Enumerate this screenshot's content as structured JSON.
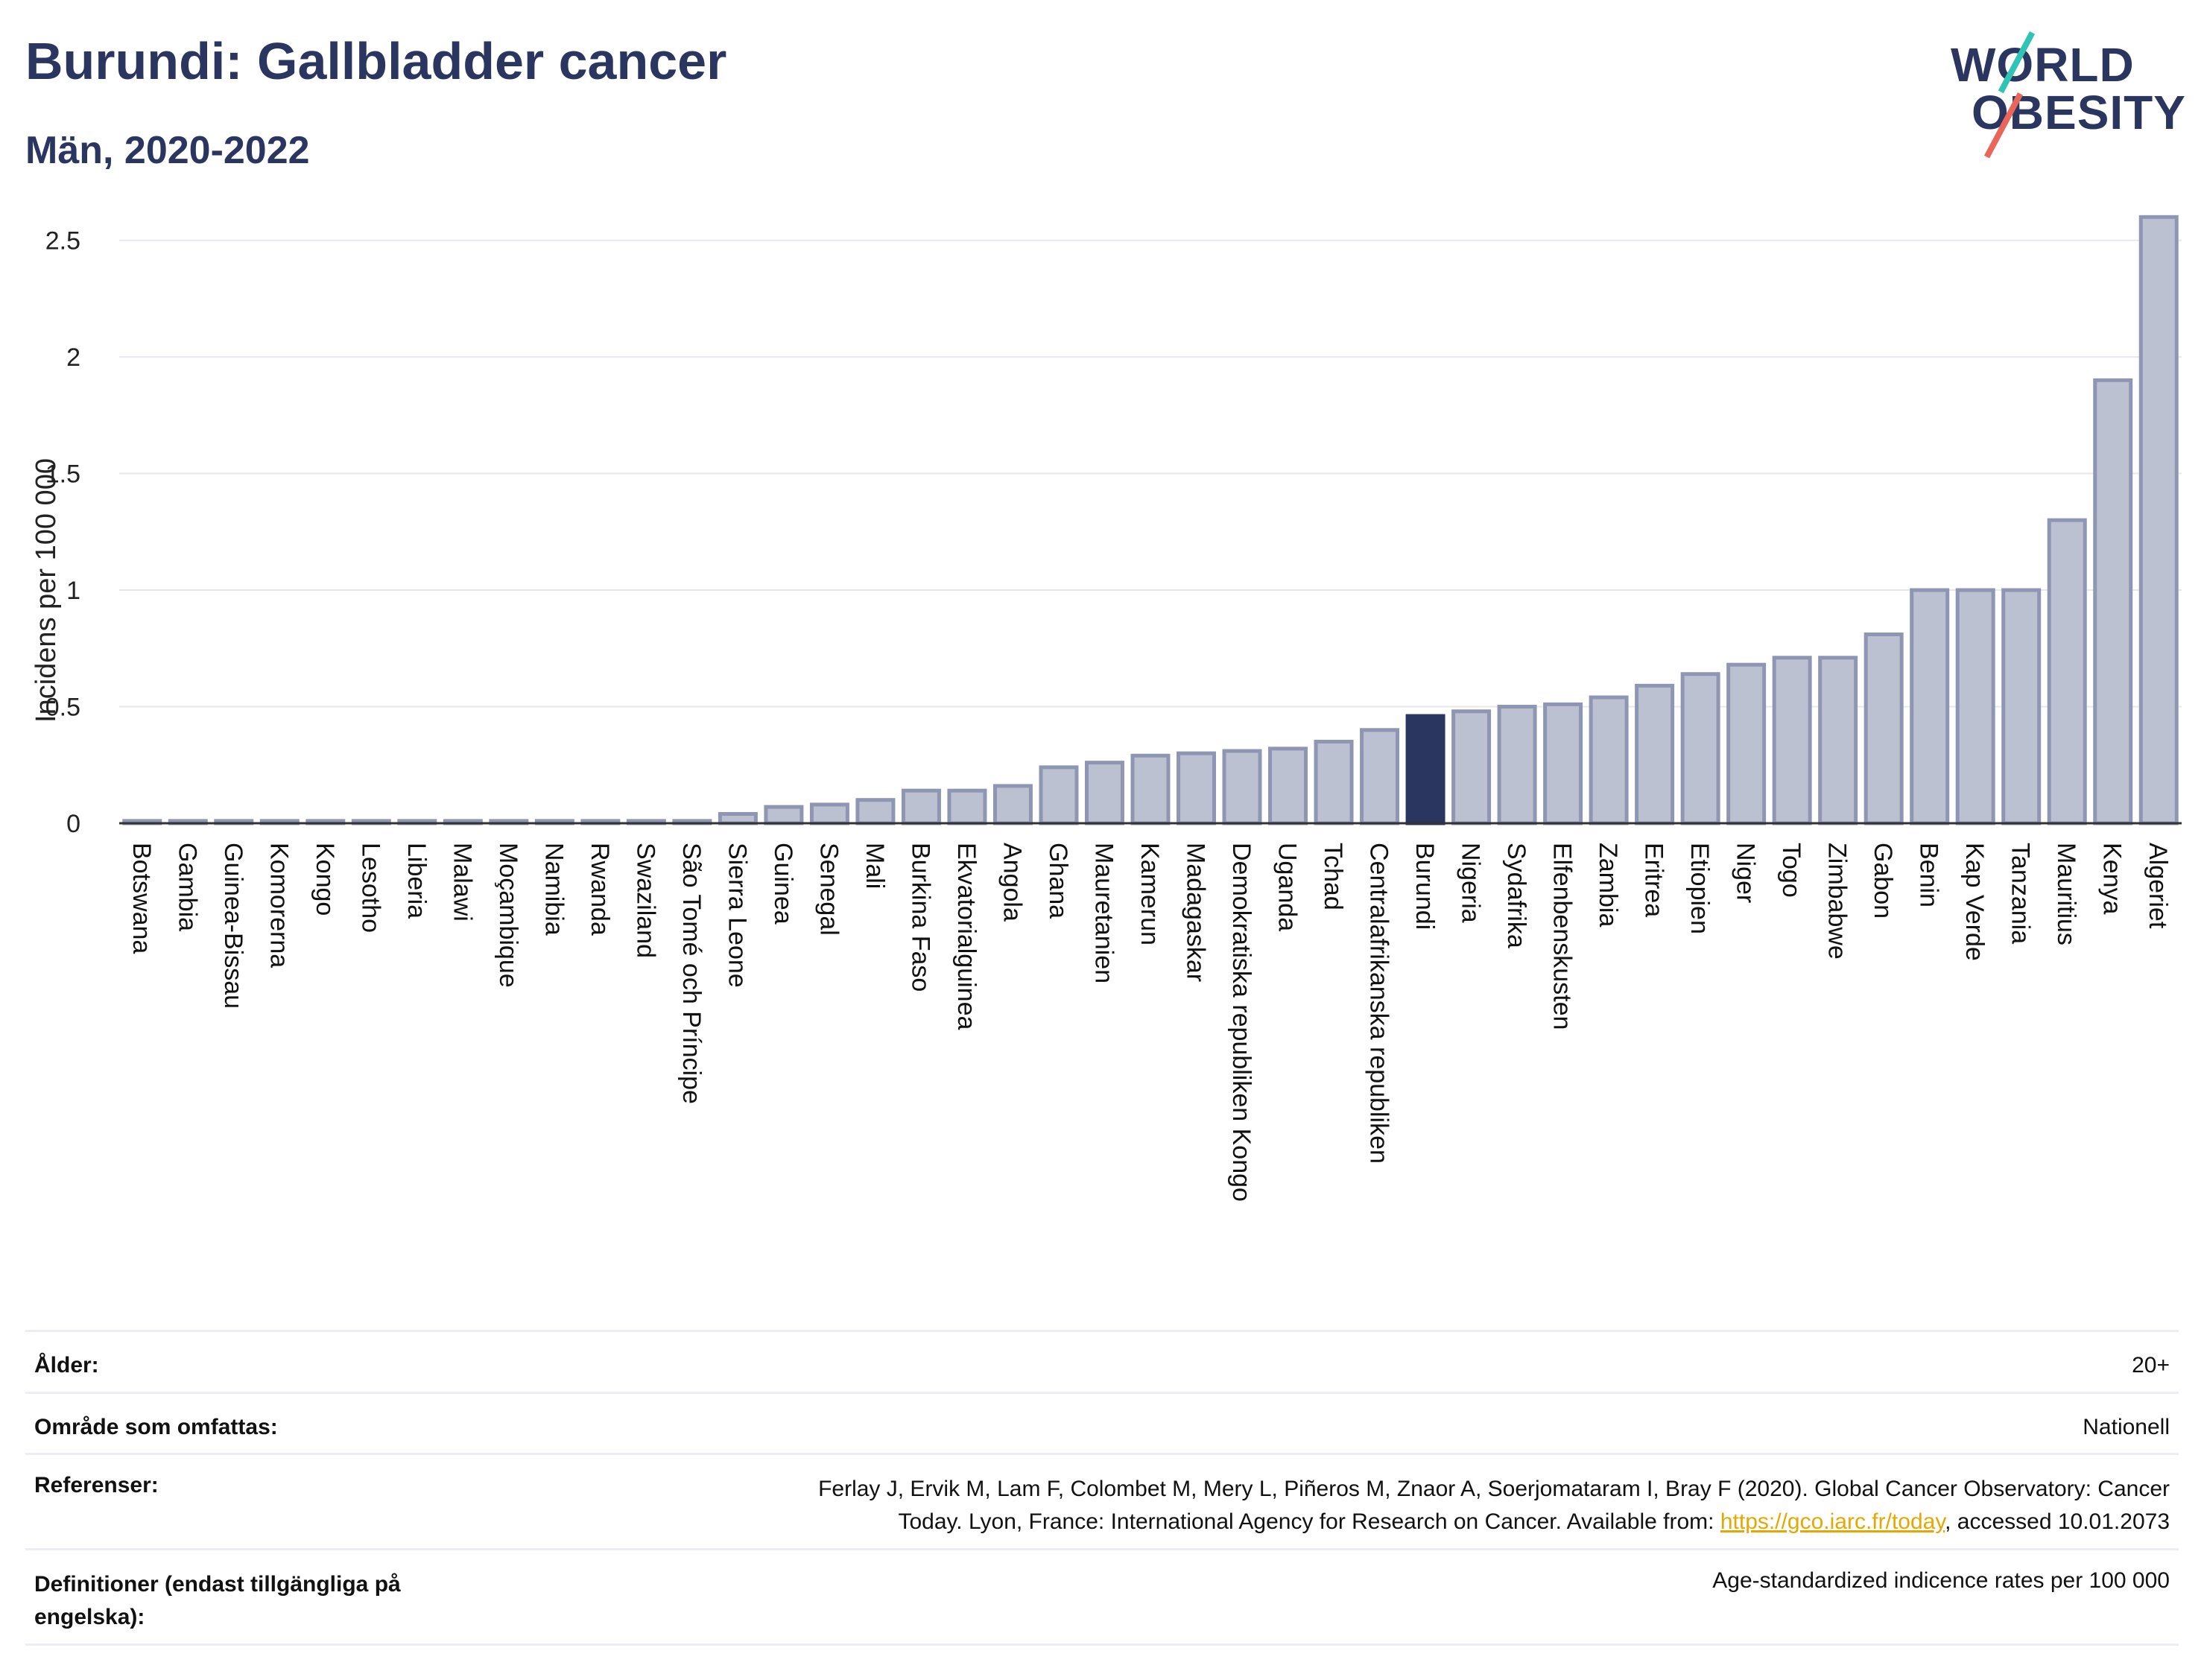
{
  "header": {
    "title": "Burundi: Gallbladder cancer",
    "subtitle": "Män, 2020-2022"
  },
  "logo": {
    "line1": "WORLD",
    "line2": "OBESITY"
  },
  "colors": {
    "bar": "#bcc1d1",
    "bar_border": "#8e96b3",
    "highlight": "#2b3660",
    "grid": "#e6e8ee",
    "axis": "#333333"
  },
  "chart_data": {
    "type": "bar",
    "ylabel": "Incidens per 100 000",
    "xlabel": "",
    "ylim": [
      0,
      2.7
    ],
    "yticks": [
      0,
      0.5,
      1,
      1.5,
      2,
      2.5
    ],
    "ytick_labels": [
      "0",
      "0.5",
      "1",
      "1.5",
      "2",
      "2.5"
    ],
    "grid": true,
    "highlight": "Burundi",
    "categories": [
      "Botswana",
      "Gambia",
      "Guinea-Bissau",
      "Komorerna",
      "Kongo",
      "Lesotho",
      "Liberia",
      "Malawi",
      "Moçambique",
      "Namibia",
      "Rwanda",
      "Swaziland",
      "São Tomé och Príncipe",
      "Sierra Leone",
      "Guinea",
      "Senegal",
      "Mali",
      "Burkina Faso",
      "Ekvatorialguinea",
      "Angola",
      "Ghana",
      "Mauretanien",
      "Kamerun",
      "Madagaskar",
      "Demokratiska republiken Kongo",
      "Uganda",
      "Tchad",
      "Centralafrikanska republiken",
      "Burundi",
      "Nigeria",
      "Sydafrika",
      "Elfenbenskusten",
      "Zambia",
      "Eritrea",
      "Etiopien",
      "Niger",
      "Togo",
      "Zimbabwe",
      "Gabon",
      "Benin",
      "Kap Verde",
      "Tanzania",
      "Mauritius",
      "Kenya",
      "Algeriet"
    ],
    "values": [
      0.01,
      0.01,
      0.01,
      0.01,
      0.01,
      0.01,
      0.01,
      0.01,
      0.01,
      0.01,
      0.01,
      0.01,
      0.01,
      0.04,
      0.07,
      0.08,
      0.1,
      0.14,
      0.14,
      0.16,
      0.24,
      0.26,
      0.29,
      0.3,
      0.31,
      0.32,
      0.35,
      0.4,
      0.46,
      0.48,
      0.5,
      0.51,
      0.54,
      0.59,
      0.64,
      0.68,
      0.71,
      0.71,
      0.81,
      1.0,
      1.0,
      1.0,
      1.3,
      1.9,
      2.6
    ]
  },
  "info": {
    "age_label": "Ålder:",
    "age_value": "20+",
    "area_label": "Område som omfattas:",
    "area_value": "Nationell",
    "ref_label": "Referenser:",
    "ref_line1": "Ferlay J, Ervik M, Lam F, Colombet M, Mery L, Piñeros M, Znaor A, Soerjomataram I, Bray F (2020). Global Cancer Observatory: Cancer",
    "ref_line2_pre": "Today. Lyon, France: International Agency for Research on Cancer. Available from: ",
    "ref_link": "https://gco.iarc.fr/today",
    "ref_line2_post": ", accessed 10.01.2073",
    "def_label_line1": "Definitioner (endast tillgängliga på",
    "def_label_line2": "engelska):",
    "def_value": "Age-standardized indicence rates per 100 000"
  }
}
